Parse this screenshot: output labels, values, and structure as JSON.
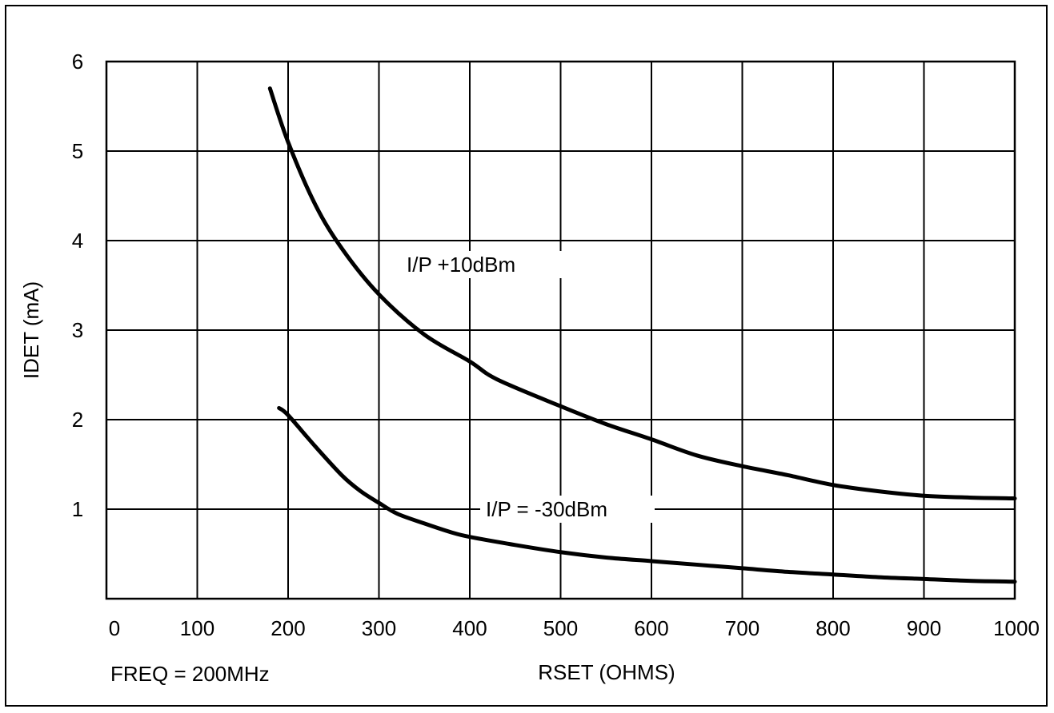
{
  "chart_data": {
    "type": "line",
    "title": "",
    "xlabel": "RSET (OHMS)",
    "ylabel": "IDET (mA)",
    "note": "FREQ = 200MHz",
    "xlim": [
      0,
      1000
    ],
    "ylim": [
      0,
      6
    ],
    "grid": true,
    "x_ticks": [
      0,
      100,
      200,
      300,
      400,
      500,
      600,
      700,
      800,
      900,
      1000
    ],
    "y_ticks": [
      1,
      2,
      3,
      4,
      5,
      6
    ],
    "series": [
      {
        "name": "I/P +10dBm",
        "x": [
          180,
          200,
          230,
          260,
          300,
          350,
          400,
          430,
          500,
          550,
          600,
          650,
          700,
          750,
          800,
          850,
          900,
          950,
          1000
        ],
        "y": [
          5.7,
          5.1,
          4.4,
          3.9,
          3.4,
          2.95,
          2.65,
          2.45,
          2.15,
          1.95,
          1.78,
          1.6,
          1.48,
          1.38,
          1.27,
          1.2,
          1.15,
          1.13,
          1.12
        ]
      },
      {
        "name": "I/P = -30dBm",
        "x": [
          190,
          200,
          230,
          260,
          280,
          300,
          320,
          350,
          380,
          400,
          450,
          500,
          550,
          600,
          650,
          700,
          750,
          800,
          850,
          900,
          950,
          1000
        ],
        "y": [
          2.13,
          2.05,
          1.7,
          1.37,
          1.2,
          1.07,
          0.95,
          0.84,
          0.74,
          0.69,
          0.6,
          0.52,
          0.46,
          0.42,
          0.38,
          0.34,
          0.3,
          0.27,
          0.24,
          0.22,
          0.2,
          0.19
        ]
      }
    ]
  }
}
